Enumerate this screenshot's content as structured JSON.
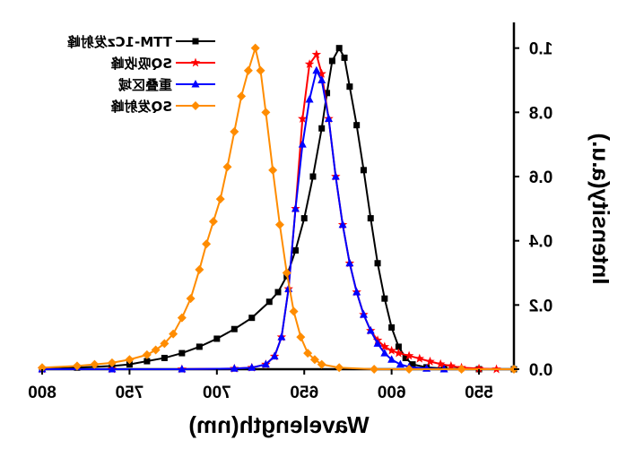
{
  "chart_data": {
    "type": "line",
    "title": "",
    "xlabel": "Wavelength(nm)",
    "ylabel": "Intensity(a.u.)",
    "xlim": [
      800,
      530
    ],
    "ylim": [
      0,
      1.08
    ],
    "x_reversed": true,
    "y_axis_side": "right",
    "mirrored_text": true,
    "grid": false,
    "legend_position": "top-right",
    "xticks": [
      "800",
      "750",
      "700",
      "650",
      "600",
      "550"
    ],
    "xtick_values": [
      800,
      750,
      700,
      650,
      600,
      550
    ],
    "yticks": [
      "0.0",
      "0.2",
      "0.4",
      "0.6",
      "0.8",
      "1.0"
    ],
    "ytick_values": [
      0,
      0.2,
      0.4,
      0.6,
      0.8,
      1.0
    ],
    "series": [
      {
        "name": "TTM-1Cz发射峰",
        "color": "#000000",
        "marker": "square",
        "points": [
          [
            800,
            0.0
          ],
          [
            780,
            0.005
          ],
          [
            760,
            0.01
          ],
          [
            750,
            0.015
          ],
          [
            740,
            0.025
          ],
          [
            730,
            0.035
          ],
          [
            720,
            0.05
          ],
          [
            710,
            0.07
          ],
          [
            700,
            0.095
          ],
          [
            690,
            0.125
          ],
          [
            680,
            0.16
          ],
          [
            670,
            0.21
          ],
          [
            665,
            0.24
          ],
          [
            660,
            0.29
          ],
          [
            655,
            0.37
          ],
          [
            650,
            0.47
          ],
          [
            645,
            0.6
          ],
          [
            640,
            0.75
          ],
          [
            637,
            0.86
          ],
          [
            634,
            0.96
          ],
          [
            630,
            1.0
          ],
          [
            627,
            0.97
          ],
          [
            624,
            0.88
          ],
          [
            620,
            0.76
          ],
          [
            616,
            0.62
          ],
          [
            612,
            0.47
          ],
          [
            608,
            0.33
          ],
          [
            604,
            0.22
          ],
          [
            600,
            0.13
          ],
          [
            596,
            0.07
          ],
          [
            592,
            0.035
          ],
          [
            588,
            0.015
          ],
          [
            580,
            0.006
          ],
          [
            570,
            0.002
          ],
          [
            550,
            0.0
          ],
          [
            530,
            0.0
          ]
        ]
      },
      {
        "name": "SQ吸收峰",
        "color": "#ff0000",
        "marker": "star",
        "points": [
          [
            800,
            0.0
          ],
          [
            760,
            0.0
          ],
          [
            720,
            0.0
          ],
          [
            690,
            0.002
          ],
          [
            680,
            0.005
          ],
          [
            672,
            0.015
          ],
          [
            667,
            0.04
          ],
          [
            663,
            0.1
          ],
          [
            659,
            0.25
          ],
          [
            655,
            0.5
          ],
          [
            651,
            0.78
          ],
          [
            647,
            0.95
          ],
          [
            643,
            0.98
          ],
          [
            640,
            0.92
          ],
          [
            636,
            0.78
          ],
          [
            632,
            0.6
          ],
          [
            628,
            0.45
          ],
          [
            624,
            0.33
          ],
          [
            620,
            0.24
          ],
          [
            616,
            0.17
          ],
          [
            612,
            0.12
          ],
          [
            608,
            0.09
          ],
          [
            604,
            0.07
          ],
          [
            600,
            0.058
          ],
          [
            596,
            0.05
          ],
          [
            590,
            0.042
          ],
          [
            584,
            0.033
          ],
          [
            578,
            0.024
          ],
          [
            572,
            0.016
          ],
          [
            566,
            0.01
          ],
          [
            560,
            0.005
          ],
          [
            550,
            0.002
          ],
          [
            540,
            0.0
          ]
        ]
      },
      {
        "name": "重叠区域",
        "color": "#0000ff",
        "marker": "triangle",
        "points": [
          [
            800,
            0.0
          ],
          [
            760,
            0.0
          ],
          [
            720,
            0.0
          ],
          [
            690,
            0.002
          ],
          [
            680,
            0.005
          ],
          [
            672,
            0.015
          ],
          [
            667,
            0.04
          ],
          [
            663,
            0.1
          ],
          [
            659,
            0.25
          ],
          [
            655,
            0.5
          ],
          [
            651,
            0.7
          ],
          [
            647,
            0.84
          ],
          [
            643,
            0.93
          ],
          [
            640,
            0.9
          ],
          [
            636,
            0.78
          ],
          [
            632,
            0.6
          ],
          [
            628,
            0.45
          ],
          [
            624,
            0.33
          ],
          [
            620,
            0.24
          ],
          [
            616,
            0.17
          ],
          [
            612,
            0.12
          ],
          [
            608,
            0.08
          ],
          [
            604,
            0.05
          ],
          [
            600,
            0.03
          ],
          [
            595,
            0.015
          ],
          [
            590,
            0.007
          ],
          [
            580,
            0.002
          ],
          [
            570,
            0.0
          ]
        ]
      },
      {
        "name": "SQ发射峰",
        "color": "#ff8c00",
        "marker": "diamond",
        "points": [
          [
            800,
            0.005
          ],
          [
            780,
            0.01
          ],
          [
            770,
            0.015
          ],
          [
            760,
            0.02
          ],
          [
            750,
            0.03
          ],
          [
            740,
            0.045
          ],
          [
            735,
            0.06
          ],
          [
            730,
            0.08
          ],
          [
            725,
            0.11
          ],
          [
            720,
            0.16
          ],
          [
            715,
            0.22
          ],
          [
            710,
            0.31
          ],
          [
            706,
            0.39
          ],
          [
            702,
            0.46
          ],
          [
            698,
            0.53
          ],
          [
            694,
            0.63
          ],
          [
            690,
            0.74
          ],
          [
            686,
            0.85
          ],
          [
            682,
            0.93
          ],
          [
            678,
            1.0
          ],
          [
            675,
            0.93
          ],
          [
            672,
            0.8
          ],
          [
            668,
            0.62
          ],
          [
            664,
            0.45
          ],
          [
            660,
            0.3
          ],
          [
            656,
            0.18
          ],
          [
            652,
            0.1
          ],
          [
            648,
            0.05
          ],
          [
            644,
            0.03
          ],
          [
            640,
            0.015
          ],
          [
            630,
            0.005
          ],
          [
            610,
            0.0
          ],
          [
            590,
            0.0
          ],
          [
            560,
            0.0
          ],
          [
            530,
            0.0
          ]
        ]
      }
    ]
  }
}
